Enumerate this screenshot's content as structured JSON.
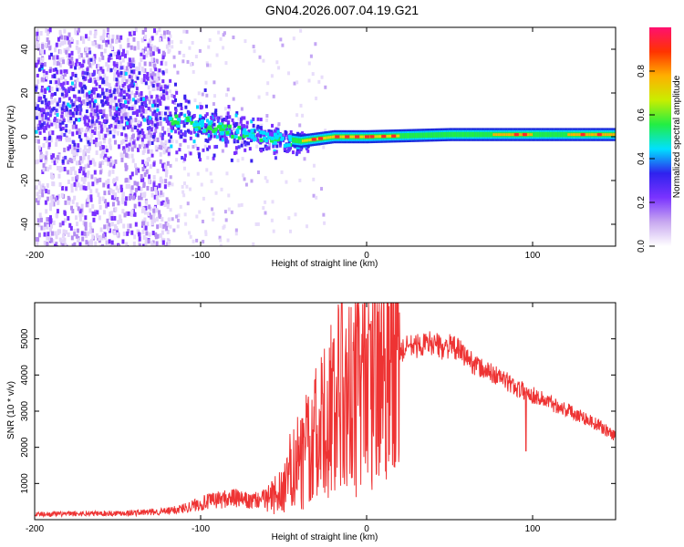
{
  "title": "GN04.2026.007.04.19.G21",
  "chart_data": [
    {
      "type": "heatmap",
      "xlabel": "Height of straight line (km)",
      "ylabel": "Frequency (Hz)",
      "xlim": [
        -200,
        150
      ],
      "ylim": [
        -50,
        50
      ],
      "xticks": [
        "-200",
        "-100",
        "0",
        "100"
      ],
      "yticks": [
        "-40",
        "-20",
        "0",
        "20",
        "40"
      ],
      "colorbar": {
        "label": "Normalized spectral amplitude",
        "range": [
          0,
          1
        ],
        "ticks": [
          "0.0",
          "0.2",
          "0.4",
          "0.6",
          "0.8"
        ],
        "colors": [
          "#ffffff",
          "#c8a8f0",
          "#7a33ff",
          "#2f22ee",
          "#00e0ff",
          "#22ee44",
          "#c8ee00",
          "#ffb000",
          "#ff3300",
          "#ff1070"
        ]
      },
      "features": {
        "noise_band_x": [
          -200,
          -120
        ],
        "main_line_center_hz": [
          {
            "x": -120,
            "y": 9
          },
          {
            "x": -100,
            "y": 6
          },
          {
            "x": -80,
            "y": 3
          },
          {
            "x": -60,
            "y": 0
          },
          {
            "x": -40,
            "y": -2
          },
          {
            "x": -20,
            "y": 0
          },
          {
            "x": 0,
            "y": 0
          },
          {
            "x": 50,
            "y": 1
          },
          {
            "x": 100,
            "y": 1
          },
          {
            "x": 150,
            "y": 1
          }
        ]
      }
    },
    {
      "type": "line",
      "xlabel": "Height of straight line (km)",
      "ylabel": "SNR (10 * v/v)",
      "xlim": [
        -200,
        150
      ],
      "ylim": [
        0,
        6000
      ],
      "xticks": [
        "-200",
        "-100",
        "0",
        "100"
      ],
      "yticks": [
        "1000",
        "2000",
        "3000",
        "4000",
        "5000"
      ],
      "color": "#ee3333",
      "series": [
        {
          "name": "SNR",
          "x": [
            -200,
            -180,
            -160,
            -140,
            -120,
            -110,
            -100,
            -90,
            -80,
            -70,
            -60,
            -50,
            -45,
            -40,
            -35,
            -30,
            -25,
            -20,
            -15,
            -10,
            -5,
            0,
            5,
            10,
            15,
            20,
            25,
            30,
            35,
            40,
            45,
            50,
            55,
            60,
            65,
            70,
            75,
            80,
            90,
            100,
            110,
            120,
            130,
            140,
            150
          ],
          "values": [
            150,
            160,
            170,
            190,
            230,
            320,
            450,
            550,
            600,
            500,
            600,
            800,
            1500,
            1700,
            2000,
            2300,
            2800,
            3000,
            3300,
            3300,
            3600,
            3700,
            3800,
            4100,
            4300,
            4600,
            4800,
            4800,
            4850,
            4900,
            4750,
            4800,
            4700,
            4500,
            4300,
            4150,
            4050,
            3950,
            3650,
            3450,
            3250,
            3050,
            2850,
            2600,
            2300
          ]
        }
      ],
      "annotations": [
        {
          "x": -15,
          "value": 6000
        },
        {
          "x": 2,
          "value": 5400
        },
        {
          "x": 96,
          "value": 1900
        }
      ]
    }
  ]
}
